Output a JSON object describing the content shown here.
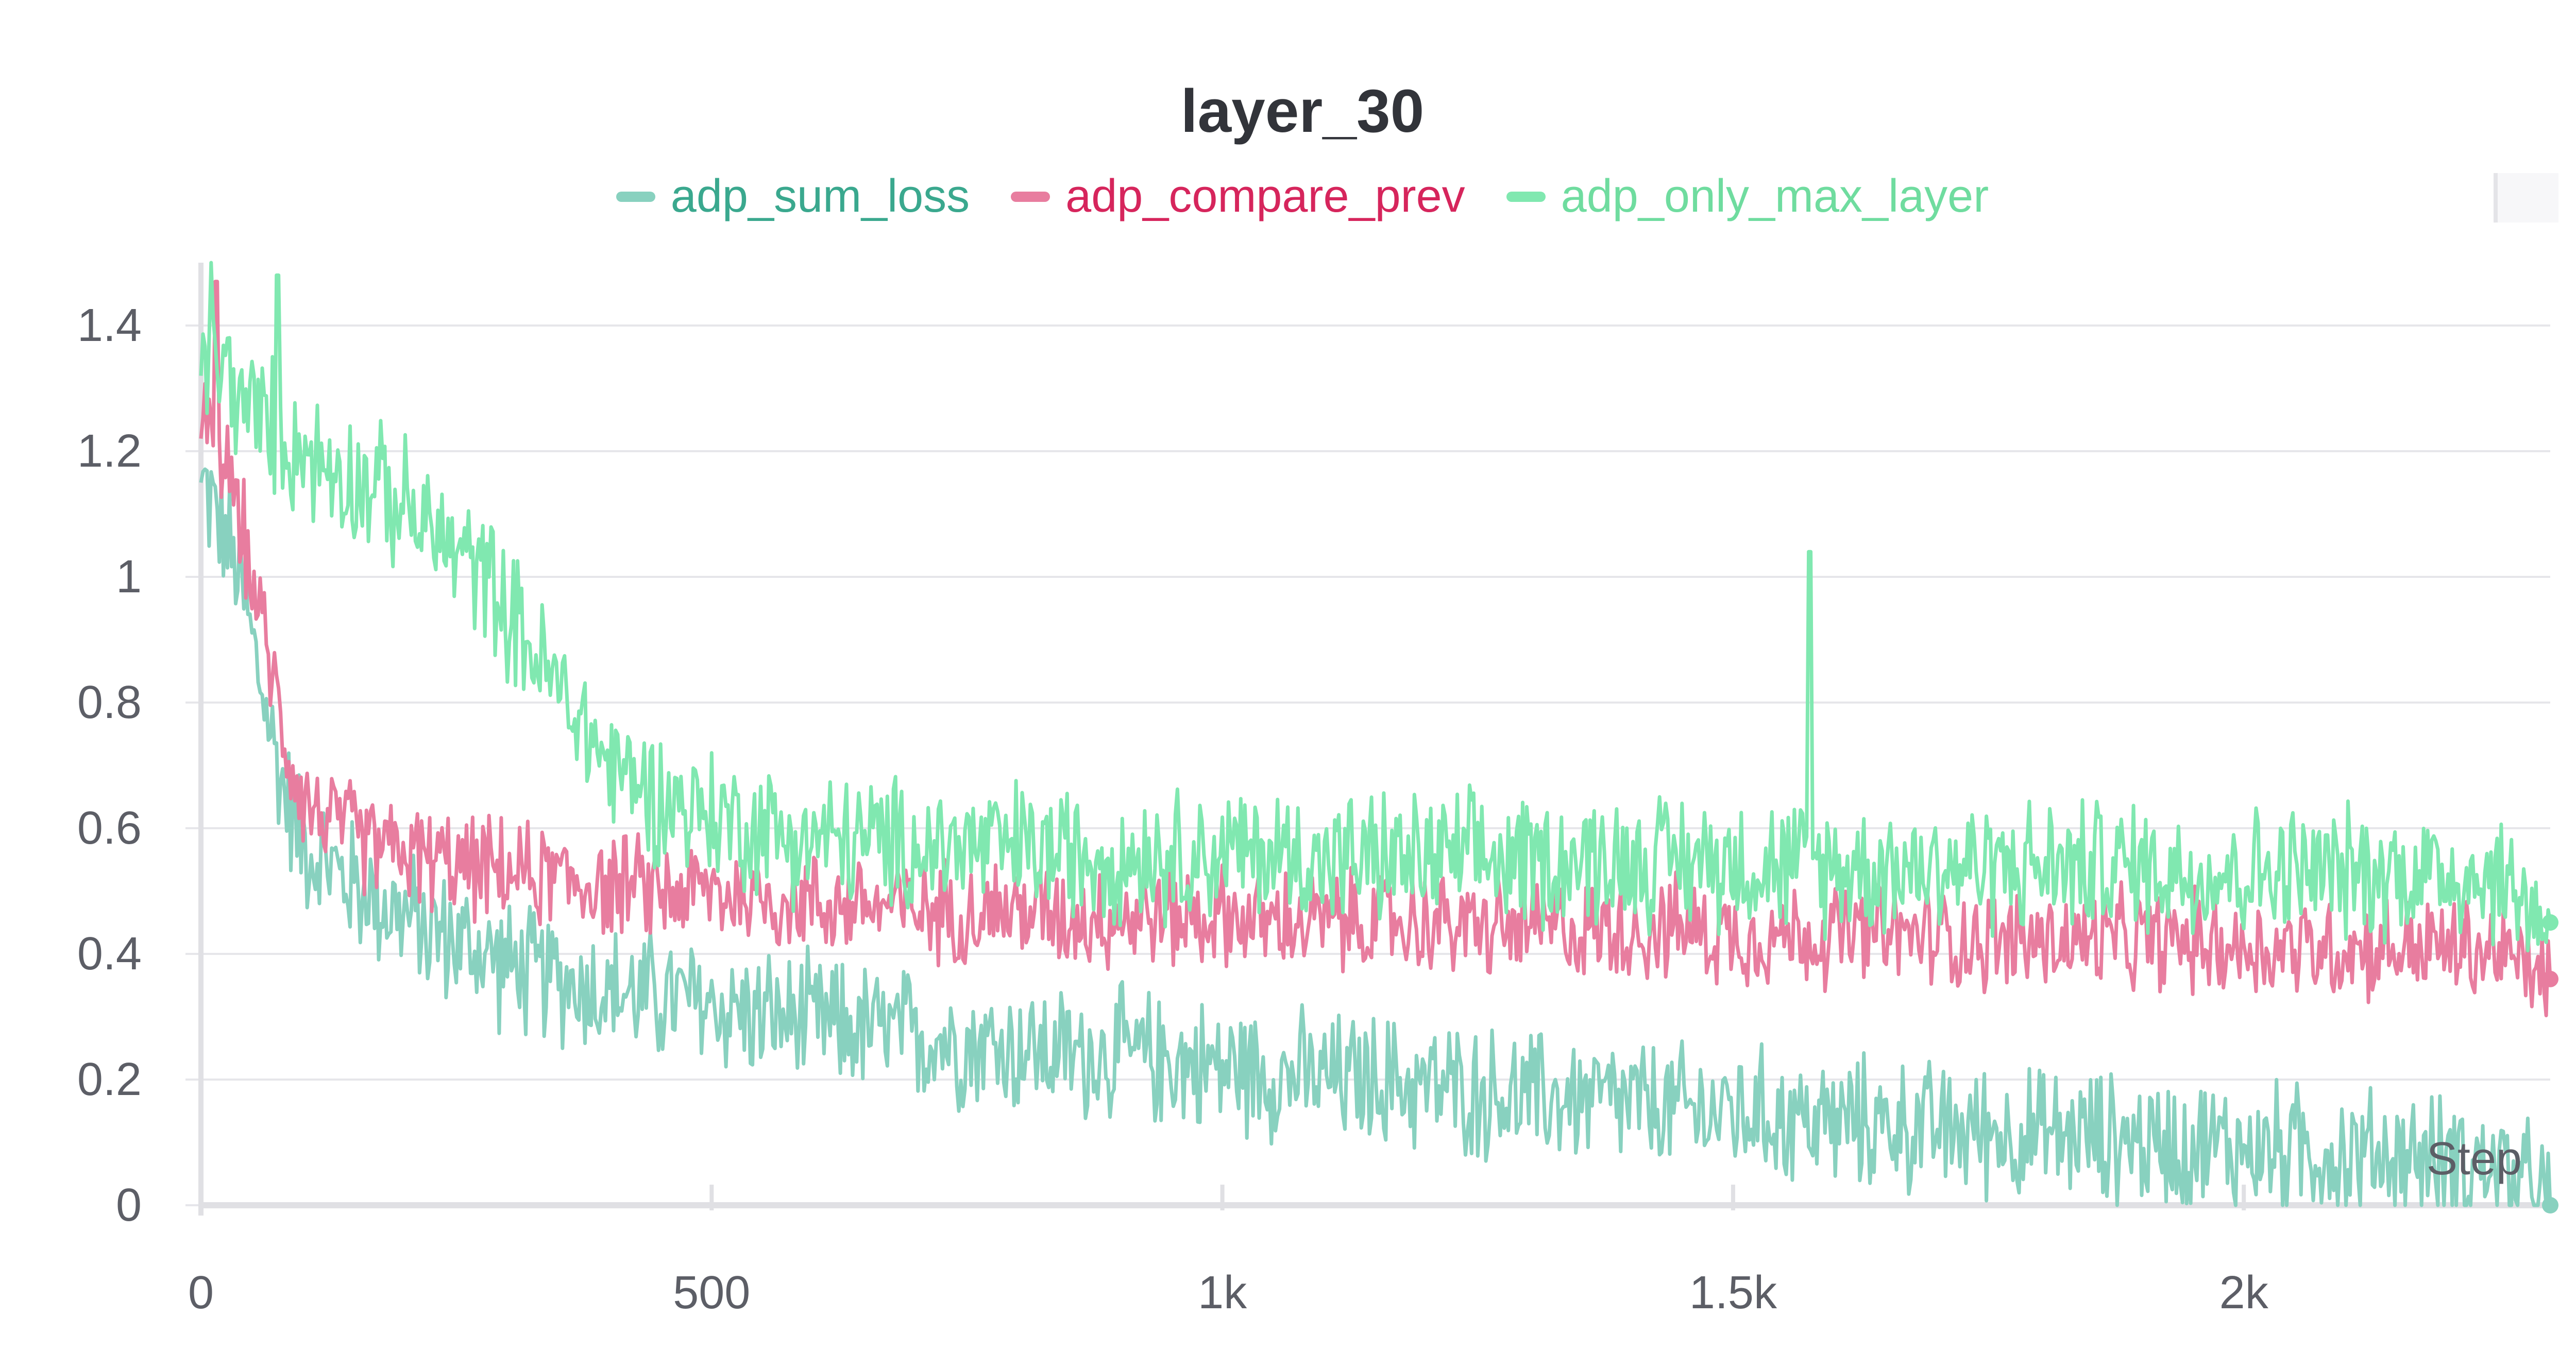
{
  "chart_data": {
    "type": "line",
    "title": "layer_30",
    "xlabel": "Step",
    "ylabel": "",
    "xlim": [
      0,
      2300
    ],
    "ylim": [
      0,
      1.5
    ],
    "x_ticks": [
      0,
      500,
      1000,
      1500,
      2000
    ],
    "x_tick_labels": [
      "0",
      "500",
      "1k",
      "1.5k",
      "2k"
    ],
    "y_ticks": [
      0,
      0.2,
      0.4,
      0.6,
      0.8,
      1,
      1.2,
      1.4
    ],
    "y_tick_labels": [
      "0",
      "0.2",
      "0.4",
      "0.6",
      "0.8",
      "1",
      "1.2",
      "1.4"
    ],
    "grid": true,
    "legend_position": "top-center",
    "series": [
      {
        "name": "adp_sum_loss",
        "color": "#88d1bf",
        "legend_text_color": "#3aa88e",
        "x": [
          0,
          10,
          20,
          30,
          40,
          50,
          60,
          70,
          80,
          90,
          100,
          120,
          140,
          160,
          180,
          200,
          220,
          250,
          280,
          300,
          320,
          350,
          380,
          400,
          450,
          500,
          550,
          600,
          650,
          700,
          750,
          800,
          850,
          900,
          950,
          1000,
          1050,
          1100,
          1150,
          1200,
          1250,
          1300,
          1350,
          1400,
          1450,
          1500,
          1550,
          1600,
          1650,
          1700,
          1750,
          1800,
          1850,
          1900,
          1950,
          2000,
          2050,
          2100,
          2150,
          2200,
          2250,
          2300
        ],
        "y": [
          1.15,
          1.12,
          1.08,
          1.03,
          0.98,
          0.9,
          0.82,
          0.74,
          0.67,
          0.62,
          0.58,
          0.55,
          0.52,
          0.5,
          0.48,
          0.46,
          0.44,
          0.42,
          0.4,
          0.38,
          0.37,
          0.36,
          0.35,
          0.34,
          0.33,
          0.32,
          0.3,
          0.29,
          0.28,
          0.27,
          0.26,
          0.25,
          0.24,
          0.24,
          0.23,
          0.22,
          0.21,
          0.2,
          0.2,
          0.19,
          0.18,
          0.17,
          0.17,
          0.16,
          0.15,
          0.15,
          0.14,
          0.13,
          0.13,
          0.12,
          0.12,
          0.11,
          0.11,
          0.1,
          0.1,
          0.09,
          0.09,
          0.08,
          0.08,
          0.07,
          0.06,
          0.0
        ]
      },
      {
        "name": "adp_compare_prev",
        "color": "#e87d9f",
        "legend_text_color": "#d6255c",
        "x": [
          0,
          10,
          20,
          30,
          40,
          50,
          60,
          70,
          80,
          90,
          100,
          120,
          140,
          160,
          180,
          200,
          250,
          300,
          350,
          400,
          450,
          500,
          550,
          600,
          650,
          700,
          750,
          800,
          850,
          900,
          950,
          1000,
          1050,
          1100,
          1150,
          1200,
          1250,
          1300,
          1350,
          1400,
          1450,
          1500,
          1550,
          1600,
          1650,
          1700,
          1750,
          1800,
          1850,
          1900,
          1950,
          2000,
          2050,
          2100,
          2150,
          2200,
          2250,
          2300
        ],
        "y": [
          1.22,
          1.25,
          1.2,
          1.15,
          1.08,
          1.0,
          0.92,
          0.84,
          0.76,
          0.7,
          0.65,
          0.62,
          0.6,
          0.58,
          0.57,
          0.56,
          0.54,
          0.53,
          0.52,
          0.51,
          0.5,
          0.5,
          0.49,
          0.48,
          0.48,
          0.47,
          0.47,
          0.47,
          0.46,
          0.46,
          0.46,
          0.46,
          0.45,
          0.45,
          0.45,
          0.45,
          0.44,
          0.44,
          0.44,
          0.44,
          0.44,
          0.43,
          0.43,
          0.43,
          0.43,
          0.43,
          0.42,
          0.42,
          0.42,
          0.42,
          0.42,
          0.41,
          0.41,
          0.41,
          0.41,
          0.41,
          0.4,
          0.36
        ]
      },
      {
        "name": "adp_only_max_layer",
        "color": "#80e8b0",
        "legend_text_color": "#6fdc9f",
        "x": [
          0,
          10,
          20,
          30,
          40,
          50,
          60,
          70,
          80,
          90,
          100,
          120,
          140,
          160,
          180,
          200,
          220,
          250,
          280,
          300,
          320,
          350,
          380,
          400,
          450,
          500,
          550,
          600,
          650,
          700,
          750,
          800,
          850,
          900,
          950,
          1000,
          1050,
          1100,
          1150,
          1200,
          1250,
          1300,
          1350,
          1400,
          1450,
          1500,
          1550,
          1600,
          1650,
          1700,
          1750,
          1800,
          1850,
          1900,
          1950,
          2000,
          2050,
          2100,
          2150,
          2200,
          2250,
          2300
        ],
        "y": [
          1.32,
          1.35,
          1.33,
          1.31,
          1.28,
          1.26,
          1.25,
          1.24,
          1.22,
          1.21,
          1.2,
          1.18,
          1.17,
          1.15,
          1.13,
          1.11,
          1.08,
          1.04,
          1.0,
          0.95,
          0.89,
          0.82,
          0.75,
          0.7,
          0.65,
          0.62,
          0.6,
          0.58,
          0.58,
          0.57,
          0.57,
          0.57,
          0.56,
          0.56,
          0.56,
          0.56,
          0.56,
          0.55,
          0.55,
          0.55,
          0.55,
          0.55,
          0.55,
          0.55,
          0.55,
          0.55,
          0.54,
          0.54,
          0.54,
          0.54,
          0.54,
          0.54,
          0.54,
          0.54,
          0.53,
          0.53,
          0.53,
          0.53,
          0.53,
          0.53,
          0.52,
          0.45
        ]
      }
    ],
    "noise_amplitude": [
      0.09,
      0.07,
      0.09
    ],
    "spikes": [
      {
        "series": 2,
        "x": 1575,
        "y": 1.04
      },
      {
        "series": 2,
        "x": 75,
        "y": 1.48
      },
      {
        "series": 2,
        "x": 10,
        "y": 1.5
      },
      {
        "series": 1,
        "x": 15,
        "y": 1.47
      }
    ]
  }
}
